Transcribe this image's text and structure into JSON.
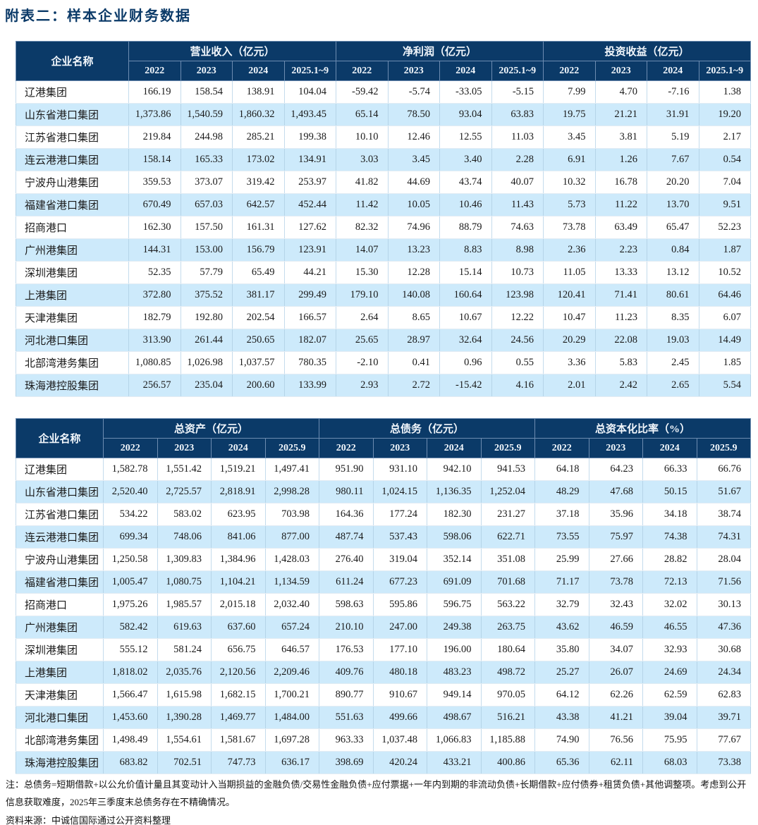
{
  "title": "附表二：样本企业财务数据",
  "colors": {
    "header_navy": "#0b3a68",
    "row_alt_blue": "#cdeafb",
    "title_navy": "#0b3a68"
  },
  "table1": {
    "company_header": "企业名称",
    "groups": [
      {
        "label": "营业收入（亿元）",
        "cols": [
          "2022",
          "2023",
          "2024",
          "2025.1~9"
        ]
      },
      {
        "label": "净利润（亿元）",
        "cols": [
          "2022",
          "2023",
          "2024",
          "2025.1~9"
        ]
      },
      {
        "label": "投资收益（亿元）",
        "cols": [
          "2022",
          "2023",
          "2024",
          "2025.1~9"
        ]
      }
    ],
    "rows": [
      {
        "name": "辽港集团",
        "values": [
          "166.19",
          "158.54",
          "138.91",
          "104.04",
          "-59.42",
          "-5.74",
          "-33.05",
          "-5.15",
          "7.99",
          "4.70",
          "-7.16",
          "1.38"
        ]
      },
      {
        "name": "山东省港口集团",
        "values": [
          "1,373.86",
          "1,540.59",
          "1,860.32",
          "1,493.45",
          "65.14",
          "78.50",
          "93.04",
          "63.83",
          "19.75",
          "21.21",
          "31.91",
          "19.20"
        ]
      },
      {
        "name": "江苏省港口集团",
        "values": [
          "219.84",
          "244.98",
          "285.21",
          "199.38",
          "10.10",
          "12.46",
          "12.55",
          "11.03",
          "3.45",
          "3.81",
          "5.19",
          "2.17"
        ]
      },
      {
        "name": "连云港港口集团",
        "values": [
          "158.14",
          "165.33",
          "173.02",
          "134.91",
          "3.03",
          "3.45",
          "3.40",
          "2.28",
          "6.91",
          "1.26",
          "7.67",
          "0.54"
        ]
      },
      {
        "name": "宁波舟山港集团",
        "values": [
          "359.53",
          "373.07",
          "319.42",
          "253.97",
          "41.82",
          "44.69",
          "43.74",
          "40.07",
          "10.32",
          "16.78",
          "20.20",
          "7.04"
        ]
      },
      {
        "name": "福建省港口集团",
        "values": [
          "670.49",
          "657.03",
          "642.57",
          "452.44",
          "11.42",
          "10.05",
          "10.46",
          "11.43",
          "5.73",
          "11.22",
          "13.70",
          "9.51"
        ]
      },
      {
        "name": "招商港口",
        "values": [
          "162.30",
          "157.50",
          "161.31",
          "127.62",
          "82.32",
          "74.96",
          "88.79",
          "74.63",
          "73.78",
          "63.49",
          "65.47",
          "52.23"
        ]
      },
      {
        "name": "广州港集团",
        "values": [
          "144.31",
          "153.00",
          "156.79",
          "123.91",
          "14.07",
          "13.23",
          "8.83",
          "8.98",
          "2.36",
          "2.23",
          "0.84",
          "1.87"
        ]
      },
      {
        "name": "深圳港集团",
        "values": [
          "52.35",
          "57.79",
          "65.49",
          "44.21",
          "15.30",
          "12.28",
          "15.14",
          "10.73",
          "11.05",
          "13.33",
          "13.12",
          "10.52"
        ]
      },
      {
        "name": "上港集团",
        "values": [
          "372.80",
          "375.52",
          "381.17",
          "299.49",
          "179.10",
          "140.08",
          "160.64",
          "123.98",
          "120.41",
          "71.41",
          "80.61",
          "64.46"
        ]
      },
      {
        "name": "天津港集团",
        "values": [
          "182.79",
          "192.80",
          "202.54",
          "166.57",
          "2.64",
          "8.65",
          "10.67",
          "12.22",
          "10.47",
          "11.23",
          "8.35",
          "6.07"
        ]
      },
      {
        "name": "河北港口集团",
        "values": [
          "313.90",
          "261.44",
          "250.65",
          "182.07",
          "25.65",
          "28.97",
          "32.64",
          "24.56",
          "20.29",
          "22.08",
          "19.03",
          "14.49"
        ]
      },
      {
        "name": "北部湾港务集团",
        "values": [
          "1,080.85",
          "1,026.98",
          "1,037.57",
          "780.35",
          "-2.10",
          "0.41",
          "0.96",
          "0.55",
          "3.36",
          "5.83",
          "2.45",
          "1.85"
        ]
      },
      {
        "name": "珠海港控股集团",
        "values": [
          "256.57",
          "235.04",
          "200.60",
          "133.99",
          "2.93",
          "2.72",
          "-15.42",
          "4.16",
          "2.01",
          "2.42",
          "2.65",
          "5.54"
        ]
      }
    ]
  },
  "table2": {
    "company_header": "企业名称",
    "groups": [
      {
        "label": "总资产（亿元）",
        "cols": [
          "2022",
          "2023",
          "2024",
          "2025.9"
        ]
      },
      {
        "label": "总债务（亿元）",
        "cols": [
          "2022",
          "2023",
          "2024",
          "2025.9"
        ]
      },
      {
        "label": "总资本化比率（%）",
        "cols": [
          "2022",
          "2023",
          "2024",
          "2025.9"
        ]
      }
    ],
    "rows": [
      {
        "name": "辽港集团",
        "values": [
          "1,582.78",
          "1,551.42",
          "1,519.21",
          "1,497.41",
          "951.90",
          "931.10",
          "942.10",
          "941.53",
          "64.18",
          "64.23",
          "66.33",
          "66.76"
        ]
      },
      {
        "name": "山东省港口集团",
        "values": [
          "2,520.40",
          "2,725.57",
          "2,818.91",
          "2,998.28",
          "980.11",
          "1,024.15",
          "1,136.35",
          "1,252.04",
          "48.29",
          "47.68",
          "50.15",
          "51.67"
        ]
      },
      {
        "name": "江苏省港口集团",
        "values": [
          "534.22",
          "583.02",
          "623.95",
          "703.98",
          "164.36",
          "177.24",
          "182.30",
          "231.27",
          "37.18",
          "35.96",
          "34.18",
          "38.74"
        ]
      },
      {
        "name": "连云港港口集团",
        "values": [
          "699.34",
          "748.06",
          "841.06",
          "877.00",
          "487.74",
          "537.43",
          "598.06",
          "622.71",
          "73.55",
          "75.97",
          "74.38",
          "74.31"
        ]
      },
      {
        "name": "宁波舟山港集团",
        "values": [
          "1,250.58",
          "1,309.83",
          "1,384.96",
          "1,428.03",
          "276.40",
          "319.04",
          "352.14",
          "351.08",
          "25.99",
          "27.66",
          "28.82",
          "28.04"
        ]
      },
      {
        "name": "福建省港口集团",
        "values": [
          "1,005.47",
          "1,080.75",
          "1,104.21",
          "1,134.59",
          "611.24",
          "677.23",
          "691.09",
          "701.68",
          "71.17",
          "73.78",
          "72.13",
          "71.56"
        ]
      },
      {
        "name": "招商港口",
        "values": [
          "1,975.26",
          "1,985.57",
          "2,015.18",
          "2,032.40",
          "598.63",
          "595.86",
          "596.75",
          "563.22",
          "32.79",
          "32.43",
          "32.02",
          "30.13"
        ]
      },
      {
        "name": "广州港集团",
        "values": [
          "582.42",
          "619.63",
          "637.60",
          "657.24",
          "210.10",
          "247.00",
          "249.38",
          "263.75",
          "43.62",
          "46.59",
          "46.55",
          "47.36"
        ]
      },
      {
        "name": "深圳港集团",
        "values": [
          "555.12",
          "581.24",
          "656.75",
          "646.57",
          "176.53",
          "177.10",
          "196.00",
          "180.64",
          "35.80",
          "34.07",
          "32.93",
          "30.68"
        ]
      },
      {
        "name": "上港集团",
        "values": [
          "1,818.02",
          "2,035.76",
          "2,120.56",
          "2,209.46",
          "409.76",
          "480.18",
          "483.23",
          "498.72",
          "25.27",
          "26.07",
          "24.69",
          "24.34"
        ]
      },
      {
        "name": "天津港集团",
        "values": [
          "1,566.47",
          "1,615.98",
          "1,682.15",
          "1,700.21",
          "890.77",
          "910.67",
          "949.14",
          "970.05",
          "64.12",
          "62.26",
          "62.59",
          "62.83"
        ]
      },
      {
        "name": "河北港口集团",
        "values": [
          "1,453.60",
          "1,390.28",
          "1,469.77",
          "1,484.00",
          "551.63",
          "499.66",
          "498.67",
          "516.21",
          "43.38",
          "41.21",
          "39.04",
          "39.71"
        ]
      },
      {
        "name": "北部湾港务集团",
        "values": [
          "1,498.49",
          "1,554.61",
          "1,581.67",
          "1,697.28",
          "963.33",
          "1,037.48",
          "1,066.83",
          "1,185.88",
          "74.90",
          "76.56",
          "75.95",
          "77.67"
        ]
      },
      {
        "name": "珠海港控股集团",
        "values": [
          "683.82",
          "702.51",
          "747.73",
          "636.17",
          "398.69",
          "420.24",
          "433.21",
          "400.86",
          "65.36",
          "62.11",
          "68.03",
          "73.38"
        ]
      }
    ]
  },
  "notes": {
    "definition": "注：总债务=短期借款+以公允价值计量且其变动计入当期损益的金融负债/交易性金融负债+应付票据+一年内到期的非流动负债+长期借款+应付债券+租赁负债+其他调整项。考虑到公开信息获取难度，2025年三季度末总债务存在不精确情况。",
    "source": "资料来源：中诚信国际通过公开资料整理"
  }
}
